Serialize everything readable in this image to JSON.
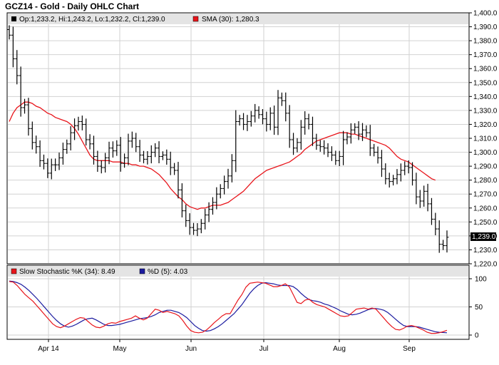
{
  "title": "GCZ14 - Gold - Daily OHLC Chart",
  "colors": {
    "price_bar": "#000000",
    "sma": "#e8151b",
    "stoch_k": "#e8151b",
    "stoch_d": "#1c1ca0",
    "grid": "#d2d2d2",
    "legend_bg": "#e4e4e4",
    "last_price_bg": "#000000",
    "last_price_text": "#ffffff"
  },
  "price_panel": {
    "legend": {
      "ohlc": "Op:1,233.2, Hi:1,243.2, Lo:1,232.2, Cl:1,239.0",
      "sma": "SMA (30): 1,280.3"
    },
    "last_price_label": "1,239.0"
  },
  "stoch_panel": {
    "legend": {
      "k": "Slow Stochastic %K (34): 8.49",
      "d": "%D (5): 4.03"
    }
  },
  "chart_data": [
    {
      "type": "ohlc",
      "title": "GCZ14 - Gold - Daily OHLC Chart",
      "ylim": [
        1220,
        1400
      ],
      "y_ticks": [
        "1,220.0",
        "1,230.0",
        "1,240.0",
        "1,250.0",
        "1,260.0",
        "1,270.0",
        "1,280.0",
        "1,290.0",
        "1,300.0",
        "1,310.0",
        "1,320.0",
        "1,330.0",
        "1,340.0",
        "1,350.0",
        "1,360.0",
        "1,370.0",
        "1,380.0",
        "1,390.0",
        "1,400.0"
      ],
      "x_labels": [
        "Apr 14",
        "May",
        "Jun",
        "Jul",
        "Aug",
        "Sep"
      ],
      "close": [
        1384,
        1367,
        1355,
        1332,
        1334,
        1317,
        1307,
        1304,
        1294,
        1292,
        1285,
        1291,
        1291,
        1296,
        1302,
        1306,
        1314,
        1319,
        1322,
        1320,
        1309,
        1306,
        1297,
        1290,
        1289,
        1296,
        1303,
        1301,
        1305,
        1292,
        1296,
        1308,
        1310,
        1304,
        1298,
        1295,
        1297,
        1300,
        1303,
        1297,
        1298,
        1295,
        1289,
        1287,
        1273,
        1258,
        1251,
        1246,
        1244,
        1245,
        1249,
        1255,
        1259,
        1264,
        1270,
        1274,
        1279,
        1283,
        1294,
        1322,
        1324,
        1320,
        1322,
        1326,
        1330,
        1327,
        1324,
        1320,
        1328,
        1318,
        1339,
        1337,
        1328,
        1309,
        1303,
        1307,
        1318,
        1324,
        1320,
        1310,
        1305,
        1304,
        1303,
        1300,
        1298,
        1294,
        1297,
        1309,
        1311,
        1316,
        1318,
        1313,
        1316,
        1314,
        1303,
        1300,
        1296,
        1288,
        1281,
        1279,
        1281,
        1284,
        1287,
        1290,
        1289,
        1280,
        1268,
        1265,
        1272,
        1263,
        1252,
        1245,
        1234,
        1233,
        1239
      ],
      "sma": [
        1322,
        1328,
        1332,
        1334,
        1336,
        1336,
        1335,
        1333,
        1332,
        1330,
        1328,
        1327,
        1325,
        1324,
        1323,
        1322,
        1320,
        1317,
        1313,
        1308,
        1303,
        1298,
        1295,
        1294,
        1294,
        1294,
        1294,
        1293,
        1293,
        1293,
        1292,
        1292,
        1291,
        1291,
        1290,
        1290,
        1289,
        1288,
        1286,
        1284,
        1281,
        1278,
        1274,
        1271,
        1268,
        1266,
        1263,
        1261,
        1260,
        1259,
        1260,
        1260,
        1261,
        1262,
        1262,
        1262,
        1263,
        1264,
        1266,
        1268,
        1270,
        1272,
        1275,
        1278,
        1281,
        1283,
        1285,
        1287,
        1288,
        1289,
        1290,
        1291,
        1292,
        1293,
        1295,
        1297,
        1299,
        1302,
        1304,
        1306,
        1308,
        1309,
        1310,
        1311,
        1312,
        1313,
        1314,
        1314,
        1314,
        1313,
        1313,
        1312,
        1311,
        1310,
        1309,
        1308,
        1307,
        1306,
        1305,
        1303,
        1300,
        1297,
        1295,
        1294,
        1293,
        1291,
        1289,
        1287,
        1285,
        1283,
        1281,
        1280
      ],
      "sma_name": "SMA (30)"
    },
    {
      "type": "line",
      "ylim": [
        0,
        100
      ],
      "y_ticks": [
        "0",
        "50",
        "100"
      ],
      "series": [
        {
          "name": "Slow Stochastic %K (34)",
          "values": [
            95,
            94,
            88,
            80,
            72,
            66,
            60,
            52,
            44,
            36,
            28,
            20,
            15,
            13,
            16,
            20,
            24,
            28,
            31,
            30,
            24,
            18,
            14,
            13,
            16,
            20,
            22,
            21,
            24,
            26,
            28,
            30,
            34,
            30,
            27,
            30,
            38,
            46,
            44,
            40,
            42,
            40,
            38,
            34,
            26,
            16,
            8,
            5,
            4,
            5,
            9,
            15,
            22,
            28,
            34,
            38,
            38,
            50,
            62,
            72,
            85,
            92,
            93,
            94,
            93,
            92,
            89,
            86,
            86,
            88,
            91,
            86,
            72,
            58,
            56,
            62,
            64,
            58,
            54,
            52,
            50,
            46,
            42,
            38,
            34,
            33,
            34,
            40,
            46,
            47,
            48,
            46,
            48,
            46,
            38,
            30,
            22,
            15,
            10,
            9,
            12,
            16,
            17,
            15,
            12,
            9,
            5,
            3,
            3,
            4,
            6,
            8.49
          ]
        },
        {
          "name": "%D (5)",
          "values": [
            96,
            95,
            93,
            90,
            85,
            79,
            72,
            65,
            57,
            49,
            41,
            33,
            26,
            20,
            16,
            14,
            16,
            19,
            23,
            27,
            29,
            30,
            27,
            23,
            19,
            17,
            17,
            18,
            19,
            21,
            23,
            25,
            27,
            29,
            30,
            31,
            33,
            36,
            40,
            42,
            44,
            44,
            42,
            40,
            36,
            31,
            24,
            17,
            12,
            8,
            7,
            8,
            11,
            15,
            20,
            26,
            32,
            38,
            46,
            54,
            64,
            74,
            82,
            88,
            92,
            93,
            92,
            91,
            89,
            88,
            88,
            88,
            86,
            81,
            74,
            68,
            63,
            61,
            60,
            58,
            55,
            53,
            50,
            47,
            43,
            40,
            37,
            36,
            37,
            39,
            42,
            45,
            47,
            47,
            46,
            44,
            40,
            34,
            28,
            22,
            17,
            15,
            15,
            15,
            14,
            12,
            10,
            8,
            6,
            5,
            4.5,
            4.03
          ]
        }
      ]
    }
  ]
}
